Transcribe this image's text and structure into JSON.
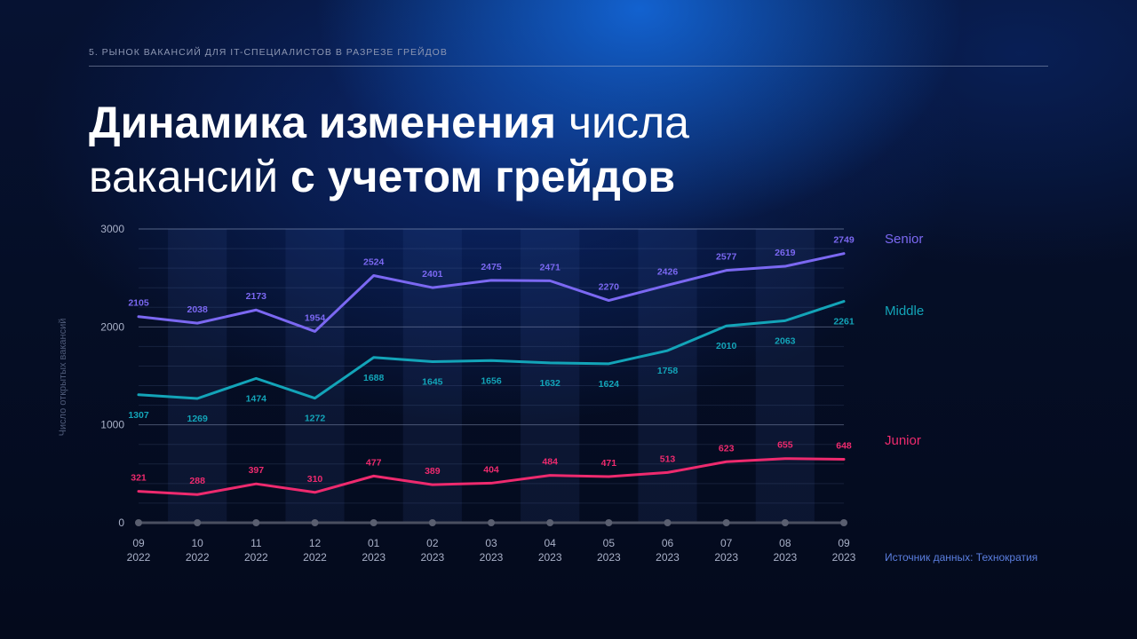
{
  "header": {
    "breadcrumb": "5. Рынок вакансий для IT-специалистов в разрезе грейдов",
    "title_part1": "Динамика изменения",
    "title_part2": " числа",
    "title_part3": "вакансий ",
    "title_part4": "с учетом грейдов"
  },
  "source": "Источник данных: Технократия",
  "colors": {
    "senior": "#7b68f2",
    "middle": "#13a4b8",
    "junior": "#ee2a6e"
  },
  "chart_data": {
    "type": "line",
    "ylabel": "Число открытых вакансий",
    "ylim": [
      0,
      3000
    ],
    "yticks": [
      0,
      1000,
      2000,
      3000
    ],
    "categories": [
      "09\n2022",
      "10\n2022",
      "11\n2022",
      "12\n2022",
      "01\n2023",
      "02\n2023",
      "03\n2023",
      "04\n2023",
      "05\n2023",
      "06\n2023",
      "07\n2023",
      "08\n2023",
      "09\n2023"
    ],
    "series": [
      {
        "name": "Senior",
        "color": "#7b68f2",
        "values": [
          2105,
          2038,
          2173,
          1954,
          2524,
          2401,
          2475,
          2471,
          2270,
          2426,
          2577,
          2619,
          2749
        ]
      },
      {
        "name": "Middle",
        "color": "#13a4b8",
        "values": [
          1307,
          1269,
          1474,
          1272,
          1688,
          1645,
          1656,
          1632,
          1624,
          1758,
          2010,
          2063,
          2261
        ]
      },
      {
        "name": "Junior",
        "color": "#ee2a6e",
        "values": [
          321,
          288,
          397,
          310,
          477,
          389,
          404,
          484,
          471,
          513,
          623,
          655,
          648
        ]
      }
    ]
  }
}
